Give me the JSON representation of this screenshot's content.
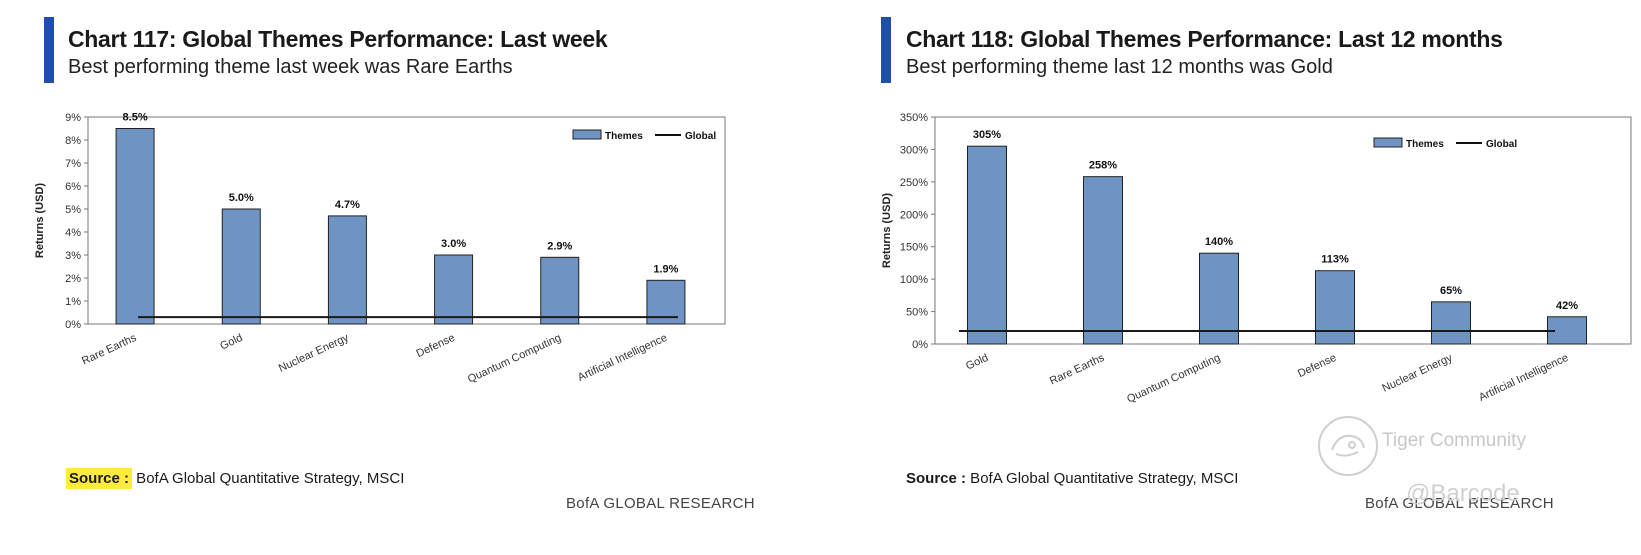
{
  "charts": [
    {
      "id": "chart-117",
      "title": "Chart 117: Global Themes Performance: Last week",
      "subtitle": "Best performing theme last week was Rare Earths",
      "source_label": "Source :",
      "source_text": " BofA Global Quantitative Strategy, MSCI",
      "brand": "BofA GLOBAL RESEARCH"
    },
    {
      "id": "chart-118",
      "title": "Chart 118: Global Themes Performance: Last 12 months",
      "subtitle": "Best performing theme last 12 months was Gold",
      "source_label": "Source :",
      "source_text": " BofA Global Quantitative Strategy, MSCI",
      "brand": "BofA GLOBAL RESEARCH"
    }
  ],
  "chart_data": [
    {
      "type": "bar",
      "categories": [
        "Rare Earths",
        "Gold",
        "Nuclear Energy",
        "Defense",
        "Quantum Computing",
        "Artificial Intelligence"
      ],
      "series": [
        {
          "name": "Themes",
          "values": [
            8.5,
            5.0,
            4.7,
            3.0,
            2.9,
            1.9
          ],
          "color": "#6f94c3"
        },
        {
          "name": "Global",
          "values": [
            0.3,
            0.3,
            0.3,
            0.3,
            0.3,
            0.3
          ],
          "color": "#1a1a1a",
          "kind": "line"
        }
      ],
      "data_labels": [
        "8.5%",
        "5.0%",
        "4.7%",
        "3.0%",
        "2.9%",
        "1.9%"
      ],
      "ylabel": "Returns (USD)",
      "xlabel": "",
      "ylim": [
        0,
        9
      ],
      "yticks": [
        "0%",
        "1%",
        "2%",
        "3%",
        "4%",
        "5%",
        "6%",
        "7%",
        "8%",
        "9%"
      ],
      "legend": {
        "themes": "Themes",
        "global": "Global",
        "position": "top-right"
      }
    },
    {
      "type": "bar",
      "categories": [
        "Gold",
        "Rare Earths",
        "Quantum Computing",
        "Defense",
        "Nuclear Energy",
        "Artificial Intelligence"
      ],
      "series": [
        {
          "name": "Themes",
          "values": [
            305,
            258,
            140,
            113,
            65,
            42
          ],
          "color": "#6f94c3"
        },
        {
          "name": "Global",
          "values": [
            20,
            20,
            20,
            20,
            20,
            20
          ],
          "color": "#1a1a1a",
          "kind": "line"
        }
      ],
      "data_labels": [
        "305%",
        "258%",
        "140%",
        "113%",
        "65%",
        "42%"
      ],
      "ylabel": "Returns (USD)",
      "xlabel": "",
      "ylim": [
        0,
        350
      ],
      "yticks": [
        "0%",
        "50%",
        "100%",
        "150%",
        "200%",
        "250%",
        "300%",
        "350%"
      ],
      "legend": {
        "themes": "Themes",
        "global": "Global",
        "position": "top-right"
      }
    }
  ],
  "watermark": {
    "community": "Tiger Community",
    "handle": "@Barcode"
  }
}
